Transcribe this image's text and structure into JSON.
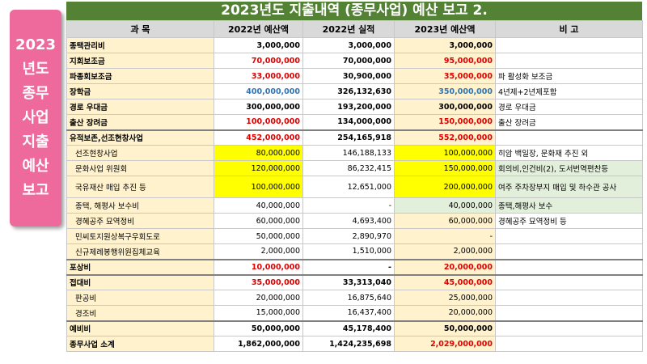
{
  "sidebar": {
    "chars": [
      "2023",
      "년도",
      "종무",
      "사업",
      "지출",
      "예산",
      "보고"
    ]
  },
  "title": "2023년도 지출내역 (종무사업) 예산 보고 2.",
  "headers": [
    "과    목",
    "2022년 예산액",
    "2022년 실적",
    "2023년 예산액",
    "비        고"
  ],
  "rows": [
    {
      "name": "종택관리비",
      "b22": "3,000,000",
      "a22": "3,000,000",
      "b23": "3,000,000",
      "note": "",
      "bold": true
    },
    {
      "name": "지회보조금",
      "b22": "70,000,000",
      "a22": "70,000,000",
      "b23": "95,000,000",
      "note": "",
      "bold": true,
      "b22c": "red",
      "b23c": "red"
    },
    {
      "name": "파종회보조금",
      "b22": "33,000,000",
      "a22": "30,900,000",
      "b23": "35,000,000",
      "note": "파 활성화 보조금",
      "bold": true,
      "b22c": "red",
      "b23c": "red"
    },
    {
      "name": "장학금",
      "b22": "400,000,000",
      "a22": "326,132,630",
      "b23": "350,000,000",
      "note": "4년제+2년제포함",
      "bold": true,
      "b22c": "blue",
      "b23c": "blue"
    },
    {
      "name": "경로 우대금",
      "b22": "300,000,000",
      "a22": "193,200,000",
      "b23": "300,000,000",
      "note": "경로 우대금",
      "bold": true
    },
    {
      "name": "출산 장려금",
      "b22": "100,000,000",
      "a22": "134,000,000",
      "b23": "150,000,000",
      "note": "출산 장려금",
      "bold": true,
      "b22c": "red",
      "b23c": "red"
    },
    {
      "name": "유적보존,선조현창사업",
      "b22": "452,000,000",
      "a22": "254,165,918",
      "b23": "552,000,000",
      "note": "",
      "bold": true,
      "b22c": "red",
      "b23c": "red",
      "thick": true
    },
    {
      "name": "선조현창사업",
      "b22": "80,000,000",
      "a22": "146,188,133",
      "b23": "100,000,000",
      "note": "히암 백일장, 문화재 추진 외",
      "sub": true,
      "hl": "yellow"
    },
    {
      "name": "문화사업 위원회",
      "b22": "120,000,000",
      "a22": "86,232,415",
      "b23": "150,000,000",
      "note": "회의비,인건비(2), 도서번역편찬등",
      "sub": true,
      "hl": "yellow",
      "noteHl": "green"
    },
    {
      "name": "국유재산 매입 추진 등",
      "b22": "100,000,000",
      "a22": "12,651,000",
      "b23": "200,000,000",
      "note": "여주 주차장부지 매입 및 하수관 공사",
      "sub": true,
      "hl": "yellow",
      "noteHl": "green",
      "tall": true
    },
    {
      "name": "종택, 해평사 보수비",
      "b22": "40,000,000",
      "a22": "-",
      "b23": "40,000,000",
      "note": "종택,해평사 보수",
      "sub": true,
      "b23Hl": "green",
      "noteHl": "green"
    },
    {
      "name": "경혜공주 묘역정비",
      "b22": "60,000,000",
      "a22": "4,693,400",
      "b23": "60,000,000",
      "note": "경혜공주 묘역정비 등",
      "sub": true
    },
    {
      "name": "민씨토지원상복구우회도로",
      "b22": "50,000,000",
      "a22": "2,890,970",
      "b23": "-",
      "note": "",
      "sub": true
    },
    {
      "name": "신규제례봉행위원집체교육",
      "b22": "2,000,000",
      "a22": "1,510,000",
      "b23": "2,000,000",
      "note": "",
      "sub": true
    },
    {
      "name": "포상비",
      "b22": "10,000,000",
      "a22": "-",
      "b23": "20,000,000",
      "note": "",
      "bold": true,
      "b22c": "red",
      "b23c": "red",
      "thick": true
    },
    {
      "name": "접대비",
      "b22": "35,000,000",
      "a22": "33,313,040",
      "b23": "45,000,000",
      "note": "",
      "bold": true,
      "b22c": "red",
      "b23c": "red",
      "thick": true
    },
    {
      "name": "판공비",
      "b22": "20,000,000",
      "a22": "16,875,640",
      "b23": "25,000,000",
      "note": "",
      "sub": true
    },
    {
      "name": "경조비",
      "b22": "15,000,000",
      "a22": "16,437,400",
      "b23": "20,000,000",
      "note": "",
      "sub": true
    },
    {
      "name": "예비비",
      "b22": "50,000,000",
      "a22": "45,178,400",
      "b23": "50,000,000",
      "note": "",
      "bold": true,
      "thick": true
    },
    {
      "name": "종무사업 소계",
      "b22": "1,862,000,000",
      "a22": "1,424,235,698",
      "b23": "2,029,000,000",
      "note": "",
      "bold": true,
      "b23c": "red"
    }
  ],
  "colors": {
    "title_bg": "#548235",
    "sidebar": "#ee6a9c",
    "highlight_yellow": "#ffff00",
    "highlight_green": "#e2efda",
    "red_text": "#e00000",
    "blue_text": "#2f75b5"
  }
}
